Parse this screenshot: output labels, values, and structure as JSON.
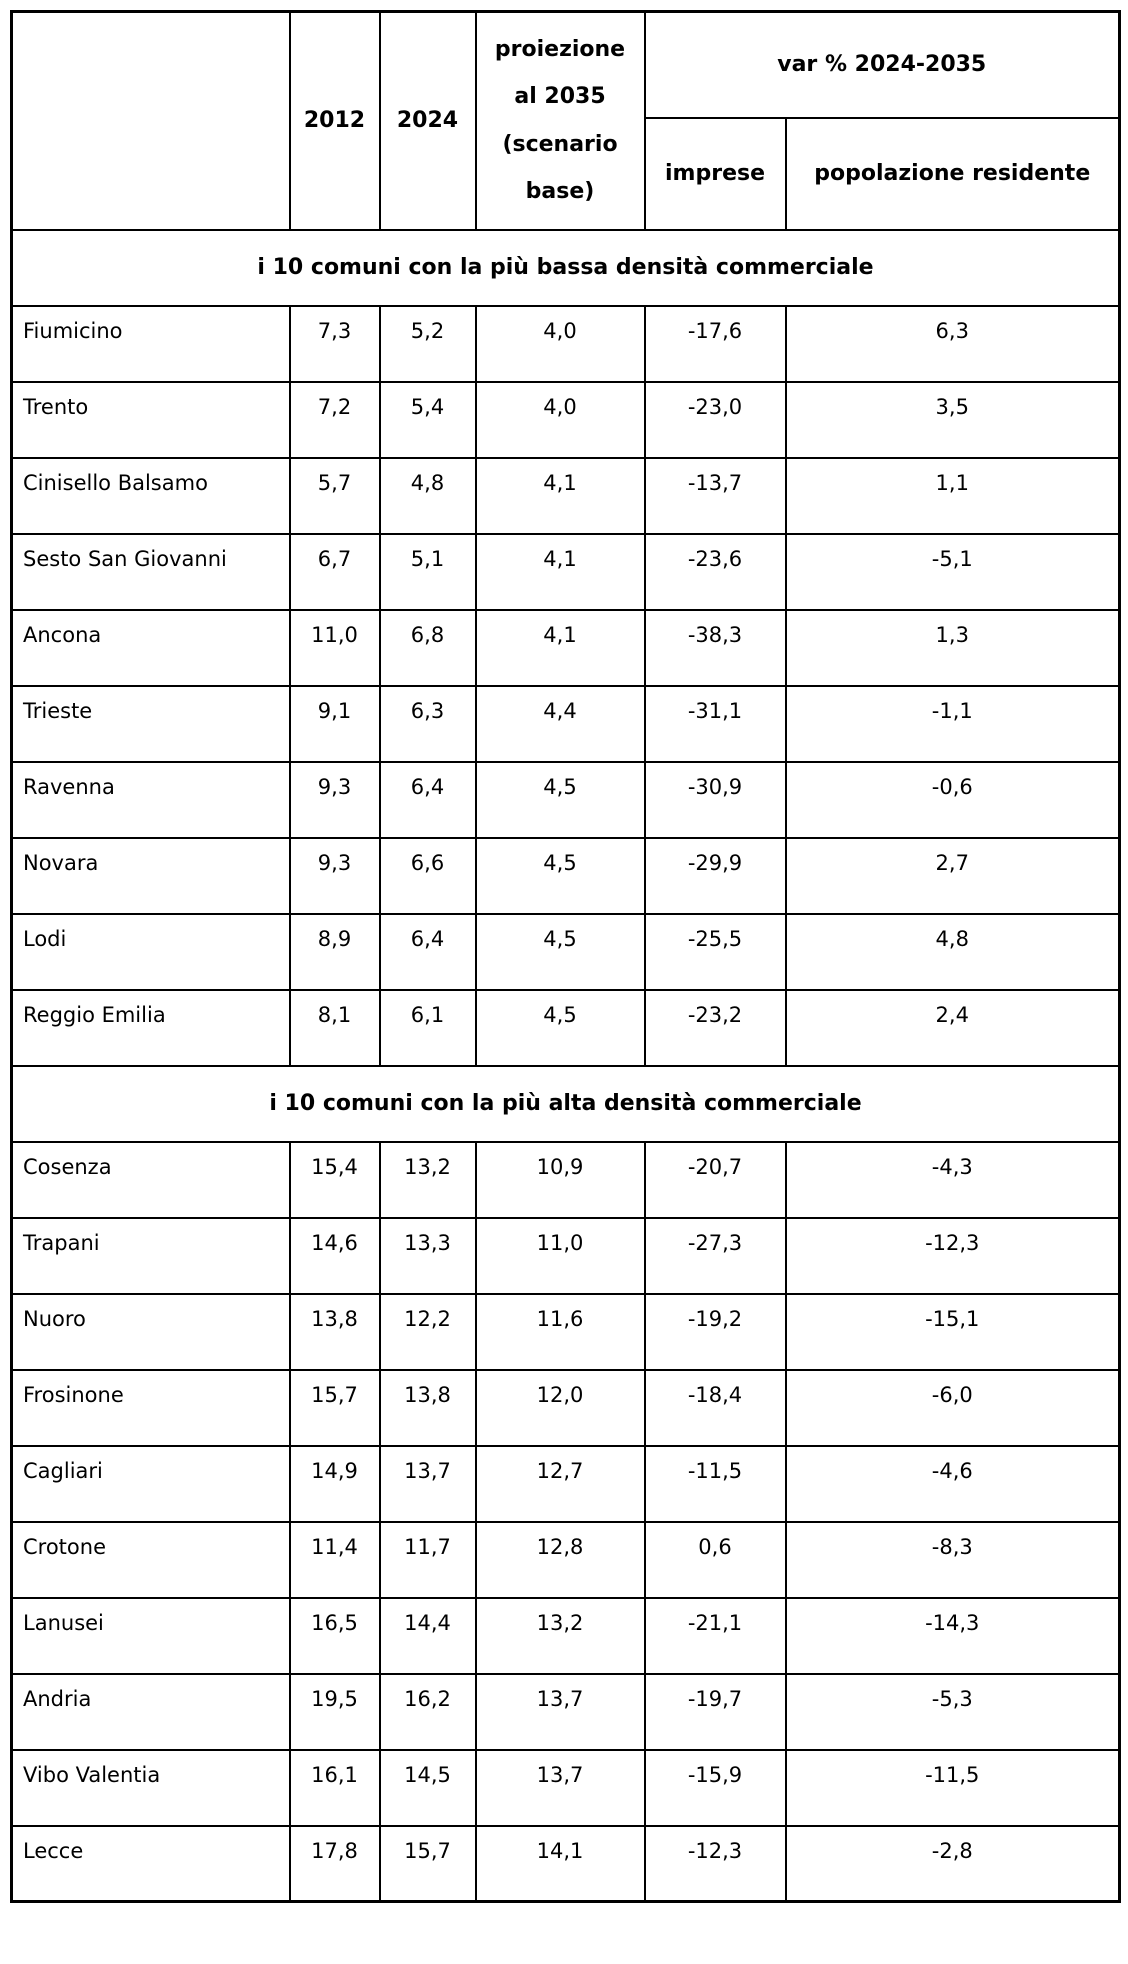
{
  "table": {
    "columns": {
      "name": "",
      "y2012": "2012",
      "y2024": "2024",
      "projection": "proiezione al 2035 (scenario base)",
      "var_group": "var % 2024-2035",
      "imprese": "imprese",
      "popolazione": "popolazione residente"
    },
    "sections": [
      {
        "title": "i 10 comuni con la più bassa densità commerciale",
        "rows": [
          {
            "name": "Fiumicino",
            "v2012": "7,3",
            "v2024": "5,2",
            "proj2035": "4,0",
            "var_imprese": "-17,6",
            "var_popolazione": "6,3"
          },
          {
            "name": "Trento",
            "v2012": "7,2",
            "v2024": "5,4",
            "proj2035": "4,0",
            "var_imprese": "-23,0",
            "var_popolazione": "3,5"
          },
          {
            "name": "Cinisello Balsamo",
            "v2012": "5,7",
            "v2024": "4,8",
            "proj2035": "4,1",
            "var_imprese": "-13,7",
            "var_popolazione": "1,1"
          },
          {
            "name": "Sesto San Giovanni",
            "v2012": "6,7",
            "v2024": "5,1",
            "proj2035": "4,1",
            "var_imprese": "-23,6",
            "var_popolazione": "-5,1"
          },
          {
            "name": "Ancona",
            "v2012": "11,0",
            "v2024": "6,8",
            "proj2035": "4,1",
            "var_imprese": "-38,3",
            "var_popolazione": "1,3"
          },
          {
            "name": "Trieste",
            "v2012": "9,1",
            "v2024": "6,3",
            "proj2035": "4,4",
            "var_imprese": "-31,1",
            "var_popolazione": "-1,1"
          },
          {
            "name": "Ravenna",
            "v2012": "9,3",
            "v2024": "6,4",
            "proj2035": "4,5",
            "var_imprese": "-30,9",
            "var_popolazione": "-0,6"
          },
          {
            "name": "Novara",
            "v2012": "9,3",
            "v2024": "6,6",
            "proj2035": "4,5",
            "var_imprese": "-29,9",
            "var_popolazione": "2,7"
          },
          {
            "name": "Lodi",
            "v2012": "8,9",
            "v2024": "6,4",
            "proj2035": "4,5",
            "var_imprese": "-25,5",
            "var_popolazione": "4,8"
          },
          {
            "name": "Reggio Emilia",
            "v2012": "8,1",
            "v2024": "6,1",
            "proj2035": "4,5",
            "var_imprese": "-23,2",
            "var_popolazione": "2,4"
          }
        ]
      },
      {
        "title": "i 10 comuni con la più alta densità commerciale",
        "rows": [
          {
            "name": "Cosenza",
            "v2012": "15,4",
            "v2024": "13,2",
            "proj2035": "10,9",
            "var_imprese": "-20,7",
            "var_popolazione": "-4,3"
          },
          {
            "name": "Trapani",
            "v2012": "14,6",
            "v2024": "13,3",
            "proj2035": "11,0",
            "var_imprese": "-27,3",
            "var_popolazione": "-12,3"
          },
          {
            "name": "Nuoro",
            "v2012": "13,8",
            "v2024": "12,2",
            "proj2035": "11,6",
            "var_imprese": "-19,2",
            "var_popolazione": "-15,1"
          },
          {
            "name": "Frosinone",
            "v2012": "15,7",
            "v2024": "13,8",
            "proj2035": "12,0",
            "var_imprese": "-18,4",
            "var_popolazione": "-6,0"
          },
          {
            "name": "Cagliari",
            "v2012": "14,9",
            "v2024": "13,7",
            "proj2035": "12,7",
            "var_imprese": "-11,5",
            "var_popolazione": "-4,6"
          },
          {
            "name": "Crotone",
            "v2012": "11,4",
            "v2024": "11,7",
            "proj2035": "12,8",
            "var_imprese": "0,6",
            "var_popolazione": "-8,3"
          },
          {
            "name": "Lanusei",
            "v2012": "16,5",
            "v2024": "14,4",
            "proj2035": "13,2",
            "var_imprese": "-21,1",
            "var_popolazione": "-14,3"
          },
          {
            "name": "Andria",
            "v2012": "19,5",
            "v2024": "16,2",
            "proj2035": "13,7",
            "var_imprese": "-19,7",
            "var_popolazione": "-5,3"
          },
          {
            "name": "Vibo Valentia",
            "v2012": "16,1",
            "v2024": "14,5",
            "proj2035": "13,7",
            "var_imprese": "-15,9",
            "var_popolazione": "-11,5"
          },
          {
            "name": "Lecce",
            "v2012": "17,8",
            "v2024": "15,7",
            "proj2035": "14,1",
            "var_imprese": "-12,3",
            "var_popolazione": "-2,8"
          }
        ]
      }
    ]
  },
  "colors": {
    "text": "#000000",
    "border": "#000000",
    "background": "#ffffff"
  },
  "chart_data": {
    "type": "table",
    "title": "",
    "column_headers": [
      "",
      "2012",
      "2024",
      "proiezione al 2035 (scenario base)",
      "var % 2024-2035 imprese",
      "var % 2024-2035 popolazione residente"
    ],
    "sections": [
      {
        "label": "i 10 comuni con la più bassa densità commerciale",
        "rows": [
          [
            "Fiumicino",
            7.3,
            5.2,
            4.0,
            -17.6,
            6.3
          ],
          [
            "Trento",
            7.2,
            5.4,
            4.0,
            -23.0,
            3.5
          ],
          [
            "Cinisello Balsamo",
            5.7,
            4.8,
            4.1,
            -13.7,
            1.1
          ],
          [
            "Sesto San Giovanni",
            6.7,
            5.1,
            4.1,
            -23.6,
            -5.1
          ],
          [
            "Ancona",
            11.0,
            6.8,
            4.1,
            -38.3,
            1.3
          ],
          [
            "Trieste",
            9.1,
            6.3,
            4.4,
            -31.1,
            -1.1
          ],
          [
            "Ravenna",
            9.3,
            6.4,
            4.5,
            -30.9,
            -0.6
          ],
          [
            "Novara",
            9.3,
            6.6,
            4.5,
            -29.9,
            2.7
          ],
          [
            "Lodi",
            8.9,
            6.4,
            4.5,
            -25.5,
            4.8
          ],
          [
            "Reggio Emilia",
            8.1,
            6.1,
            4.5,
            -23.2,
            2.4
          ]
        ]
      },
      {
        "label": "i 10 comuni con la più alta densità commerciale",
        "rows": [
          [
            "Cosenza",
            15.4,
            13.2,
            10.9,
            -20.7,
            -4.3
          ],
          [
            "Trapani",
            14.6,
            13.3,
            11.0,
            -27.3,
            -12.3
          ],
          [
            "Nuoro",
            13.8,
            12.2,
            11.6,
            -19.2,
            -15.1
          ],
          [
            "Frosinone",
            15.7,
            13.8,
            12.0,
            -18.4,
            -6.0
          ],
          [
            "Cagliari",
            14.9,
            13.7,
            12.7,
            -11.5,
            -4.6
          ],
          [
            "Crotone",
            11.4,
            11.7,
            12.8,
            0.6,
            -8.3
          ],
          [
            "Lanusei",
            16.5,
            14.4,
            13.2,
            -21.1,
            -14.3
          ],
          [
            "Andria",
            19.5,
            16.2,
            13.7,
            -19.7,
            -5.3
          ],
          [
            "Vibo Valentia",
            16.1,
            14.5,
            13.7,
            -15.9,
            -11.5
          ],
          [
            "Lecce",
            17.8,
            15.7,
            14.1,
            -12.3,
            -2.8
          ]
        ]
      }
    ]
  }
}
